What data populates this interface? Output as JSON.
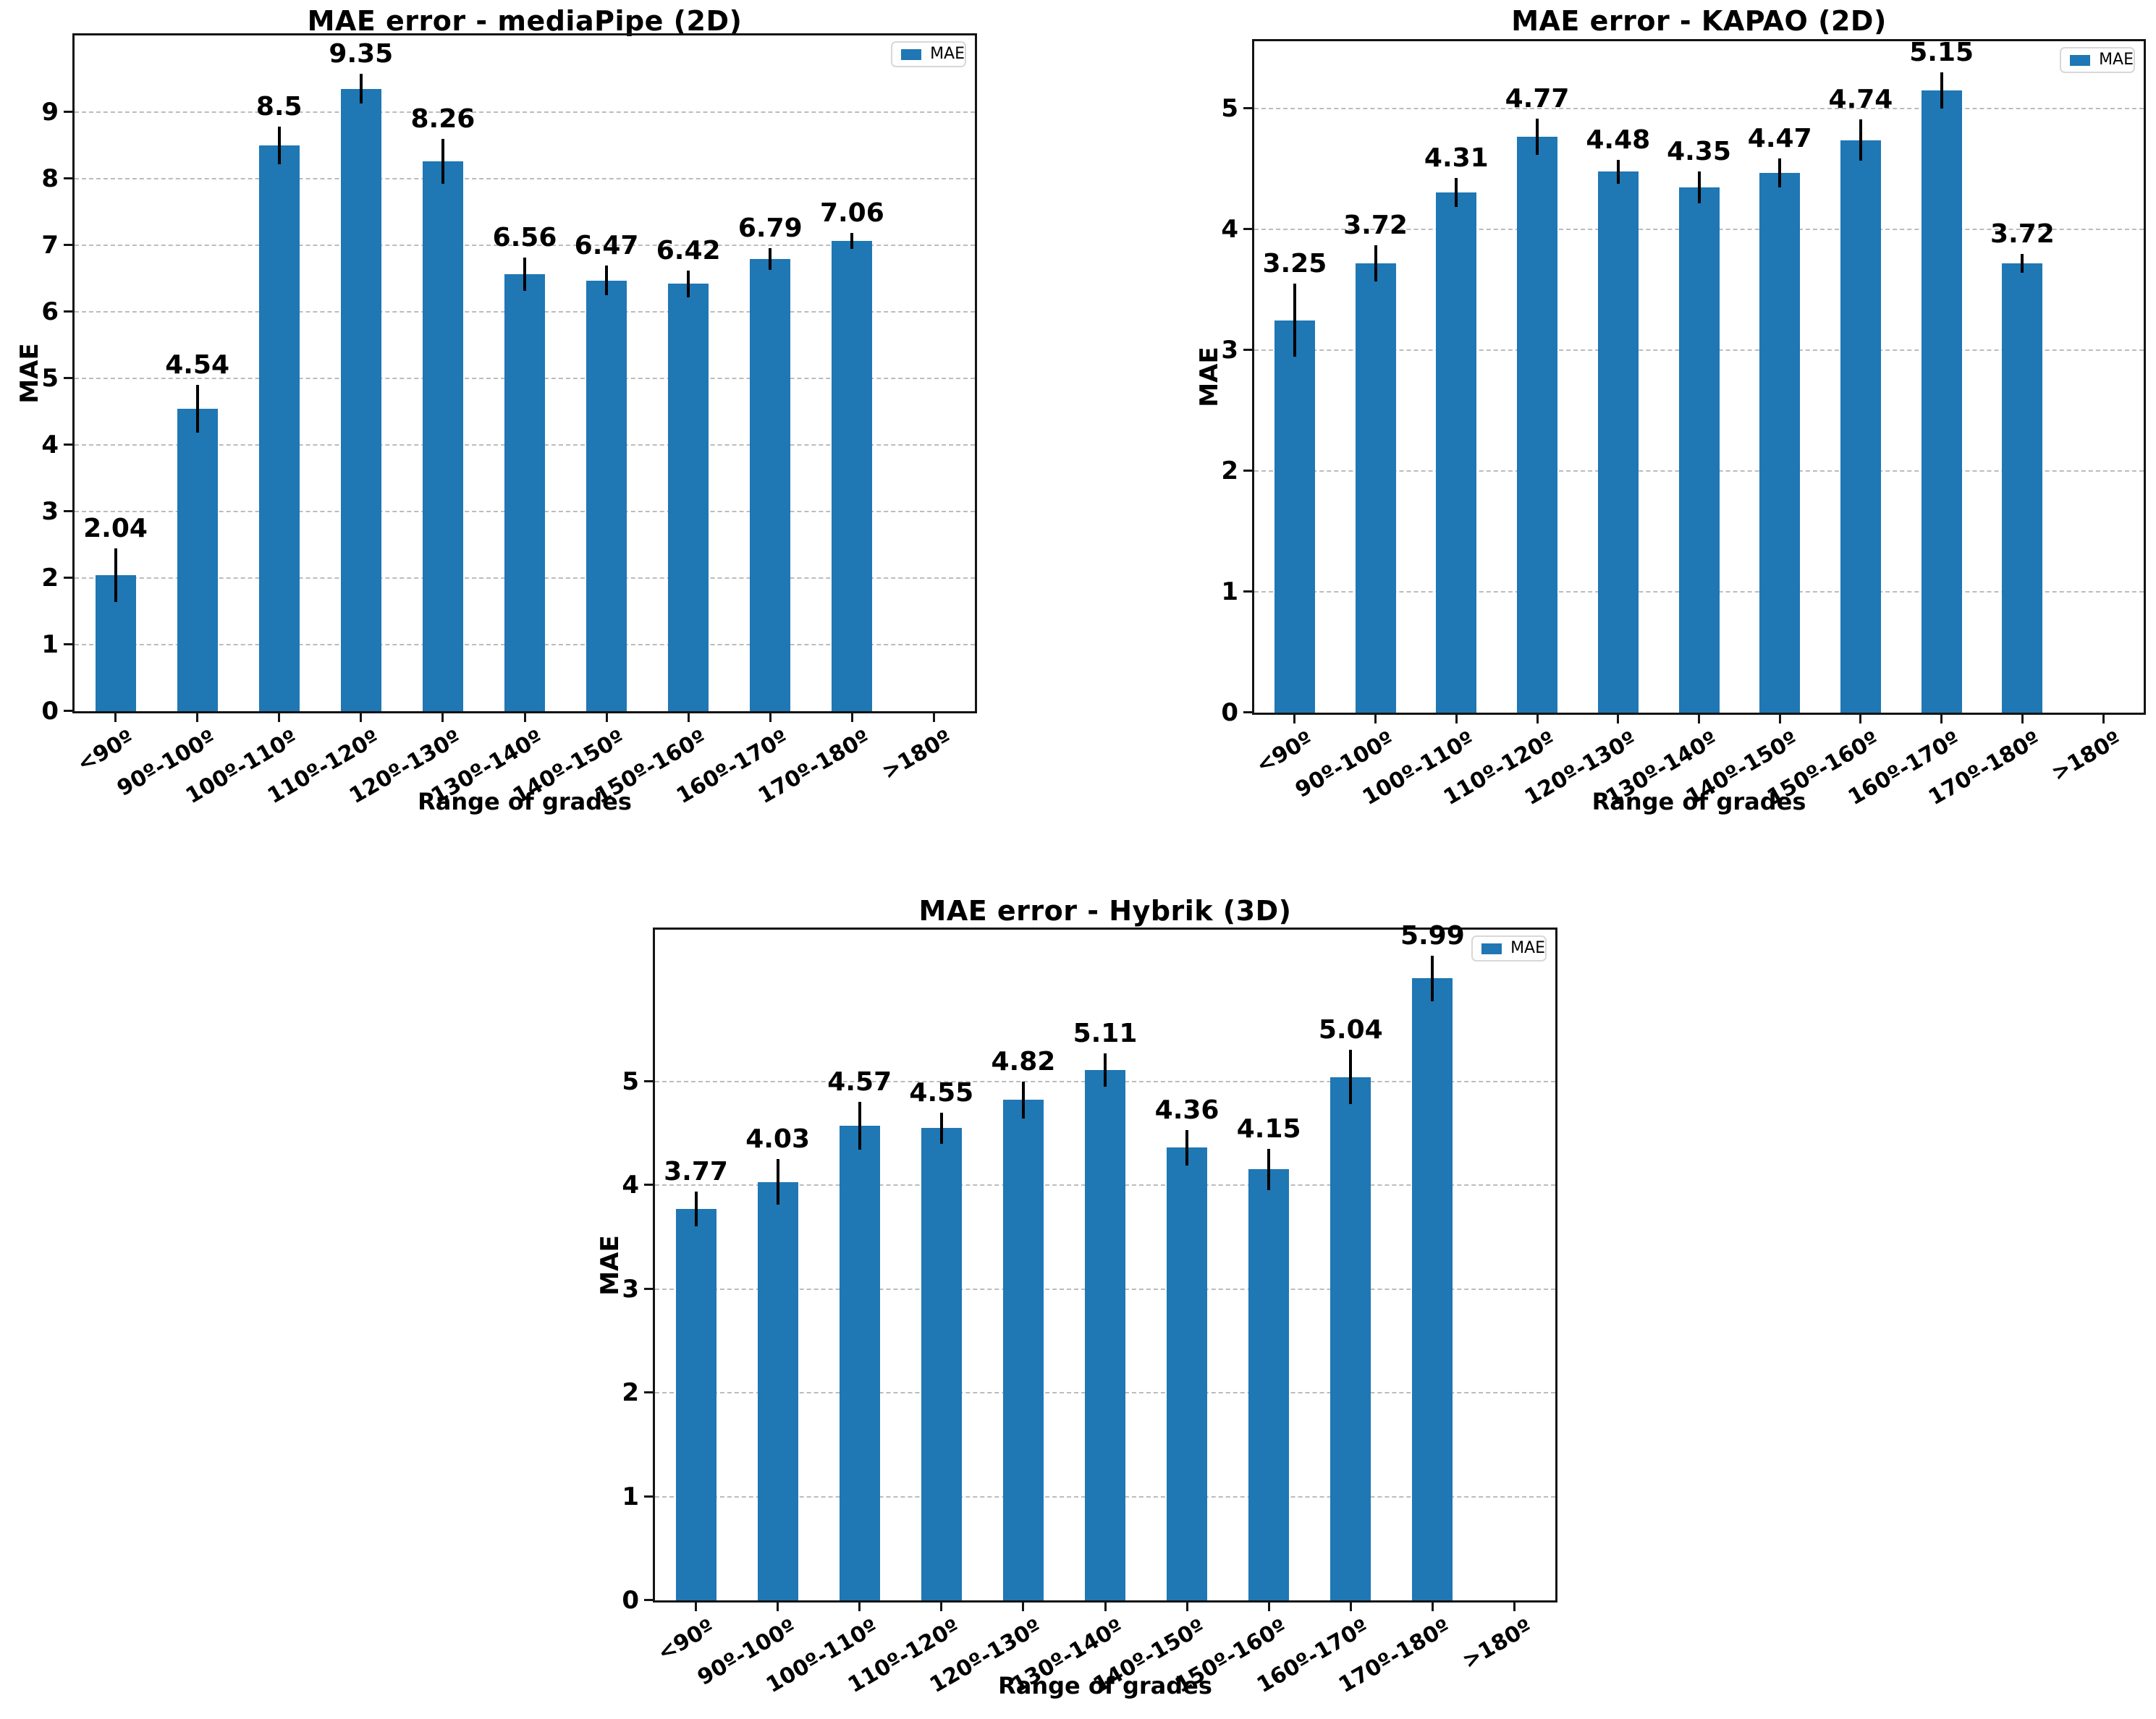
{
  "figure_background": "#ffffff",
  "colors": {
    "bar": "#1f77b4",
    "error_bar": "#000000",
    "grid": "#bcbcbc",
    "axis": "#141414",
    "legend_border": "#d8d8d8",
    "text": "#000000"
  },
  "chart_data": [
    {
      "type": "bar",
      "title": "MAE error - mediaPipe (2D)",
      "xlabel": "Range of grades",
      "ylabel": "MAE",
      "legend": [
        "MAE"
      ],
      "legend_position": "upper right",
      "grid": true,
      "categories": [
        "<90º",
        "90º-100º",
        "100º-110º",
        "110º-120º",
        "120º-130º",
        "130º-140º",
        "140º-150º",
        "150º-160º",
        "160º-170º",
        "170º-180º",
        ">180º"
      ],
      "values": [
        2.04,
        4.54,
        8.5,
        9.35,
        8.26,
        6.56,
        6.47,
        6.42,
        6.79,
        7.06,
        null
      ],
      "value_labels": [
        "2.04",
        "4.54",
        "8.5",
        "9.35",
        "8.26",
        "6.56",
        "6.47",
        "6.42",
        "6.79",
        "7.06"
      ],
      "errors": [
        0.4,
        0.36,
        0.28,
        0.22,
        0.34,
        0.25,
        0.22,
        0.2,
        0.16,
        0.12,
        null
      ],
      "yticks": [
        "0",
        "1",
        "2",
        "3",
        "4",
        "5",
        "6",
        "7",
        "8",
        "9"
      ],
      "ylim": [
        0,
        10.15
      ]
    },
    {
      "type": "bar",
      "title": "MAE error - KAPAO (2D)",
      "xlabel": "Range of grades",
      "ylabel": "MAE",
      "legend": [
        "MAE"
      ],
      "legend_position": "upper right",
      "grid": true,
      "categories": [
        "<90º",
        "90º-100º",
        "100º-110º",
        "110º-120º",
        "120º-130º",
        "130º-140º",
        "140º-150º",
        "150º-160º",
        "160º-170º",
        "170º-180º",
        ">180º"
      ],
      "values": [
        3.25,
        3.72,
        4.31,
        4.77,
        4.48,
        4.35,
        4.47,
        4.74,
        5.15,
        3.72,
        null
      ],
      "value_labels": [
        "3.25",
        "3.72",
        "4.31",
        "4.77",
        "4.48",
        "4.35",
        "4.47",
        "4.74",
        "5.15",
        "3.72"
      ],
      "errors": [
        0.3,
        0.15,
        0.12,
        0.15,
        0.1,
        0.13,
        0.12,
        0.17,
        0.15,
        0.08,
        null
      ],
      "yticks": [
        "0",
        "1",
        "2",
        "3",
        "4",
        "5"
      ],
      "ylim": [
        0,
        5.56
      ]
    },
    {
      "type": "bar",
      "title": "MAE error - Hybrik (3D)",
      "xlabel": "Range of grades",
      "ylabel": "MAE",
      "legend": [
        "MAE"
      ],
      "legend_position": "upper right",
      "grid": true,
      "categories": [
        "<90º",
        "90º-100º",
        "100º-110º",
        "110º-120º",
        "120º-130º",
        "130º-140º",
        "140º-150º",
        "150º-160º",
        "160º-170º",
        "170º-180º",
        ">180º"
      ],
      "values": [
        3.77,
        4.03,
        4.57,
        4.55,
        4.82,
        5.11,
        4.36,
        4.15,
        5.04,
        5.99,
        null
      ],
      "value_labels": [
        "3.77",
        "4.03",
        "4.57",
        "4.55",
        "4.82",
        "5.11",
        "4.36",
        "4.15",
        "5.04",
        "5.99"
      ],
      "errors": [
        0.17,
        0.22,
        0.23,
        0.15,
        0.18,
        0.16,
        0.17,
        0.2,
        0.26,
        0.22,
        null
      ],
      "yticks": [
        "0",
        "1",
        "2",
        "3",
        "4",
        "5"
      ],
      "ylim": [
        0,
        6.46
      ]
    }
  ]
}
